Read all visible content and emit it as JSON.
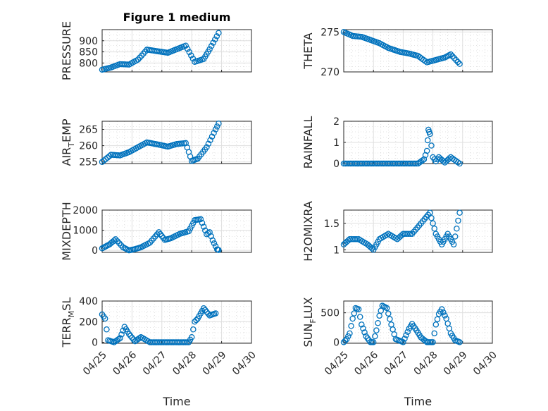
{
  "figure": {
    "title": "Figure 1 medium"
  },
  "colors": {
    "marker": "#0072bd",
    "axis": "#262626"
  },
  "chart_data": [
    {
      "type": "scatter",
      "panel": "top-left",
      "title": "Figure 1 medium",
      "ylabel": "PRESSURE",
      "xlabel": "",
      "xlim": [
        "04/25",
        "04/30"
      ],
      "ylim": [
        760,
        950
      ],
      "yticks": [
        800,
        850,
        900
      ],
      "grid": true,
      "marker": "circle",
      "x_day": [
        0.0,
        0.3,
        0.6,
        0.9,
        1.2,
        1.5,
        1.9,
        2.2,
        2.5,
        2.8,
        3.1,
        3.4,
        3.6,
        3.9
      ],
      "y": [
        770,
        780,
        795,
        793,
        815,
        860,
        852,
        846,
        862,
        878,
        805,
        818,
        862,
        935
      ],
      "series": [
        {
          "name": "",
          "points": []
        }
      ]
    },
    {
      "type": "scatter",
      "panel": "top-right",
      "title": "",
      "ylabel": "THETA",
      "xlabel": "",
      "xlim": [
        "04/25",
        "04/30"
      ],
      "ylim": [
        270,
        275.3
      ],
      "yticks": [
        270,
        275
      ],
      "grid": true,
      "marker": "circle",
      "x_day": [
        0.0,
        0.3,
        0.6,
        0.9,
        1.2,
        1.5,
        1.9,
        2.2,
        2.5,
        2.8,
        3.1,
        3.4,
        3.6,
        3.9
      ],
      "y": [
        275.0,
        274.5,
        274.4,
        274.0,
        273.6,
        273.0,
        272.5,
        272.3,
        272.0,
        271.2,
        271.5,
        271.8,
        272.2,
        271.0
      ]
    },
    {
      "type": "scatter",
      "panel": "row2-left",
      "title": "",
      "ylabel": "AIR_TEMP",
      "ylabel_main": "AIR",
      "ylabel_sub": "T",
      "ylabel_rest": "EMP",
      "xlabel": "",
      "xlim": [
        "04/25",
        "04/30"
      ],
      "ylim": [
        254.5,
        267.5
      ],
      "yticks": [
        255,
        260,
        265
      ],
      "grid": true,
      "marker": "circle",
      "x_day": [
        0.0,
        0.3,
        0.6,
        0.9,
        1.2,
        1.5,
        1.9,
        2.2,
        2.5,
        2.8,
        3.0,
        3.2,
        3.5,
        3.8,
        3.9
      ],
      "y": [
        255.0,
        257.2,
        257.0,
        258.0,
        259.5,
        261.0,
        260.3,
        259.7,
        260.5,
        260.8,
        255.3,
        256.0,
        259.5,
        265.0,
        266.8
      ]
    },
    {
      "type": "scatter",
      "panel": "row2-right",
      "title": "",
      "ylabel": "RAINFALL",
      "xlabel": "",
      "xlim": [
        "04/25",
        "04/30"
      ],
      "ylim": [
        0,
        2
      ],
      "yticks": [
        0,
        1,
        2
      ],
      "grid": true,
      "marker": "circle",
      "x_day": [
        0.0,
        0.5,
        1.0,
        1.5,
        2.0,
        2.5,
        2.7,
        2.8,
        2.85,
        2.9,
        3.0,
        3.1,
        3.2,
        3.4,
        3.6,
        3.9
      ],
      "y": [
        0,
        0,
        0,
        0,
        0,
        0,
        0.2,
        0.6,
        1.6,
        1.4,
        0.3,
        0.1,
        0.3,
        0.05,
        0.3,
        0
      ]
    },
    {
      "type": "scatter",
      "panel": "row3-left",
      "title": "",
      "ylabel": "MIXDEPTH",
      "xlabel": "",
      "xlim": [
        "04/25",
        "04/30"
      ],
      "ylim": [
        -100,
        2000
      ],
      "yticks": [
        0,
        1000,
        2000
      ],
      "grid": true,
      "marker": "circle",
      "x_day": [
        0.0,
        0.25,
        0.45,
        0.7,
        0.9,
        1.1,
        1.3,
        1.6,
        1.9,
        2.1,
        2.3,
        2.6,
        2.9,
        3.1,
        3.3,
        3.5,
        3.6,
        3.7,
        3.85,
        3.9
      ],
      "y": [
        100,
        300,
        550,
        150,
        0,
        60,
        150,
        380,
        900,
        520,
        600,
        820,
        950,
        1500,
        1550,
        800,
        900,
        500,
        50,
        20
      ]
    },
    {
      "type": "scatter",
      "panel": "row3-right",
      "title": "",
      "ylabel": "H2OMIXRA",
      "xlabel": "",
      "xlim": [
        "04/25",
        "04/30"
      ],
      "ylim": [
        0.95,
        1.75
      ],
      "yticks": [
        1,
        1.5
      ],
      "grid": true,
      "marker": "circle",
      "x_day": [
        0.0,
        0.2,
        0.5,
        0.8,
        1.0,
        1.2,
        1.5,
        1.8,
        2.0,
        2.3,
        2.6,
        2.9,
        3.1,
        3.3,
        3.5,
        3.7,
        3.9
      ],
      "y": [
        1.1,
        1.2,
        1.2,
        1.1,
        1.0,
        1.2,
        1.3,
        1.2,
        1.3,
        1.3,
        1.5,
        1.7,
        1.3,
        1.1,
        1.3,
        1.1,
        1.7
      ]
    },
    {
      "type": "scatter",
      "panel": "bottom-left",
      "title": "",
      "ylabel": "TERR_MSL",
      "ylabel_main": "TERR",
      "ylabel_sub": "M",
      "ylabel_rest": "SL",
      "xlabel": "Time",
      "xlim": [
        "04/25",
        "04/30"
      ],
      "ylim": [
        -10,
        400
      ],
      "yticks": [
        0,
        200,
        400
      ],
      "xticks": [
        "04/25",
        "04/26",
        "04/27",
        "04/28",
        "04/29",
        "04/30"
      ],
      "grid": true,
      "marker": "circle",
      "x_day": [
        0.0,
        0.1,
        0.2,
        0.4,
        0.6,
        0.75,
        0.9,
        1.1,
        1.3,
        1.6,
        2.0,
        2.5,
        2.9,
        3.0,
        3.1,
        3.2,
        3.4,
        3.6,
        3.8
      ],
      "y": [
        270,
        230,
        20,
        0,
        40,
        150,
        80,
        10,
        50,
        0,
        0,
        0,
        0,
        50,
        200,
        230,
        330,
        260,
        280
      ]
    },
    {
      "type": "scatter",
      "panel": "bottom-right",
      "title": "",
      "ylabel": "SUN_FLUX",
      "ylabel_main": "SUN",
      "ylabel_sub": "F",
      "ylabel_rest": "LUX",
      "xlabel": "Time",
      "xlim": [
        "04/25",
        "04/30"
      ],
      "ylim": [
        -20,
        700
      ],
      "yticks": [
        0,
        500
      ],
      "xticks": [
        "04/25",
        "04/26",
        "04/27",
        "04/28",
        "04/29",
        "04/30"
      ],
      "grid": true,
      "marker": "circle",
      "x_day": [
        0.0,
        0.1,
        0.2,
        0.3,
        0.4,
        0.5,
        0.6,
        0.75,
        0.9,
        1.0,
        1.1,
        1.2,
        1.3,
        1.45,
        1.6,
        1.75,
        2.0,
        2.1,
        2.2,
        2.3,
        2.45,
        2.6,
        2.8,
        3.0,
        3.1,
        3.2,
        3.3,
        3.45,
        3.6,
        3.75,
        3.9
      ],
      "y": [
        0,
        50,
        150,
        400,
        580,
        560,
        300,
        100,
        0,
        0,
        200,
        450,
        620,
        580,
        300,
        50,
        0,
        120,
        230,
        310,
        200,
        80,
        0,
        0,
        300,
        480,
        560,
        400,
        150,
        30,
        0
      ]
    }
  ]
}
